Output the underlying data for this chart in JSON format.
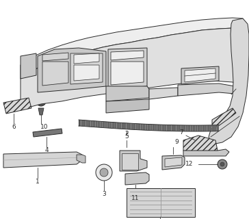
{
  "bg_color": "#ffffff",
  "line_color": "#2a2a2a",
  "gray_fill": "#d8d8d8",
  "light_fill": "#eeeeee",
  "dark_fill": "#888888",
  "font_size": 6.5,
  "lw": 0.7
}
